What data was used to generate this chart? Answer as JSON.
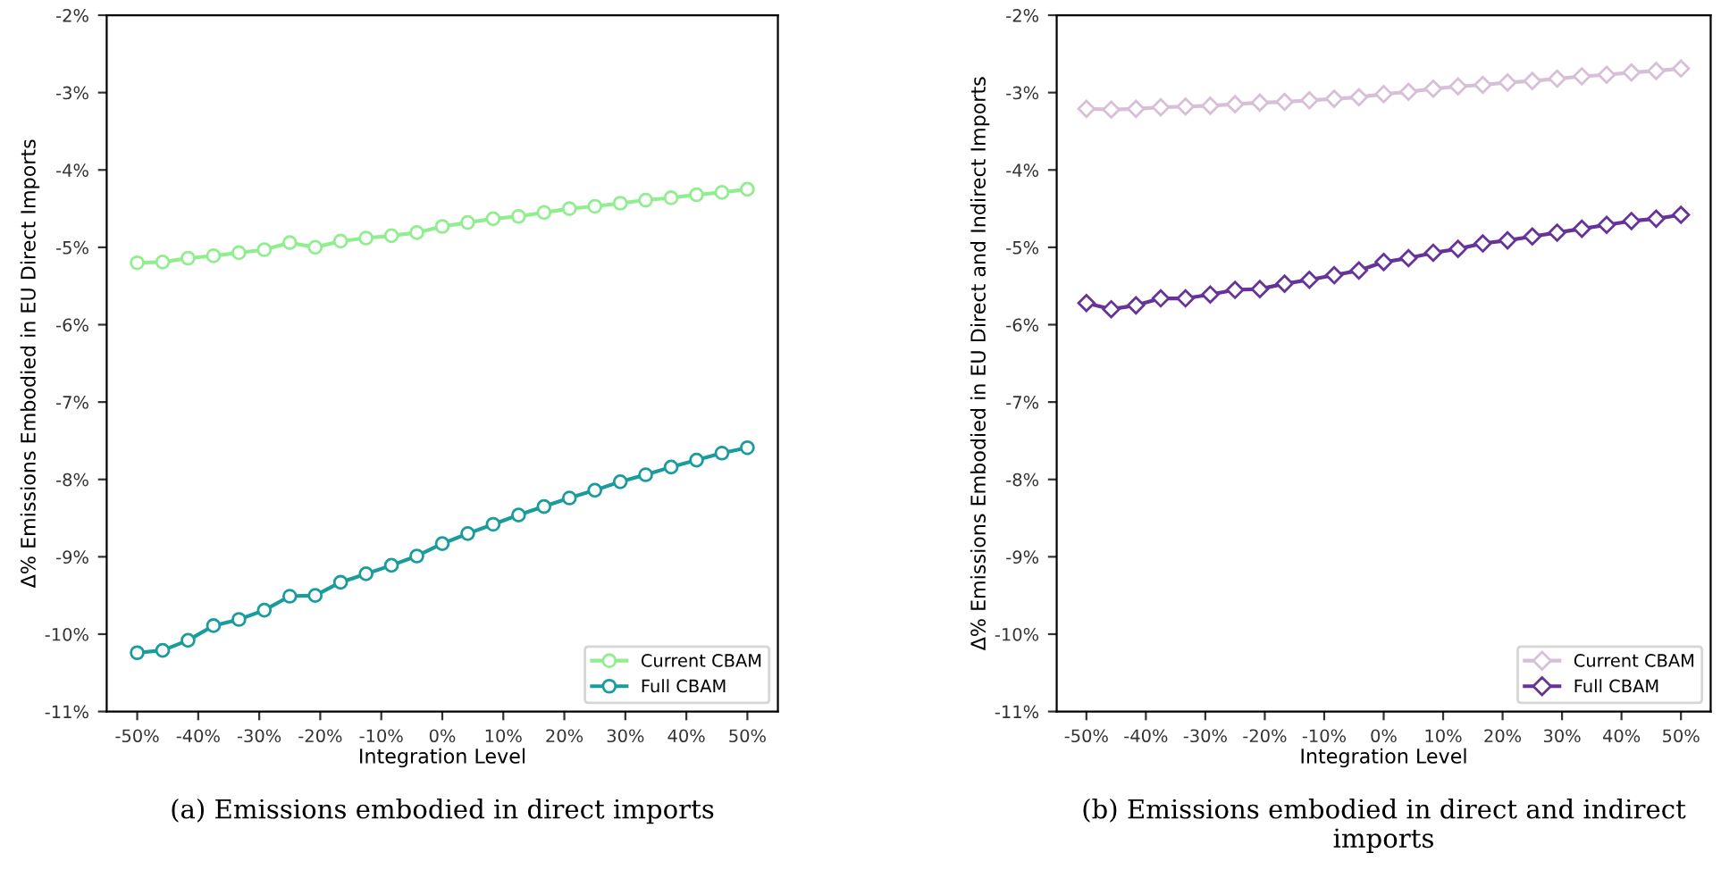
{
  "chart_data": [
    {
      "type": "line",
      "xlabel": "Integration Level",
      "ylabel": "Δ% Emissions Embodied in EU Direct Imports",
      "annotations": [
        "(a) Emissions embodied in direct imports"
      ],
      "marker": "circle",
      "legend": "bottom right",
      "grid": false,
      "x": [
        -50,
        -45.83,
        -41.67,
        -37.5,
        -33.33,
        -29.17,
        -25,
        -20.83,
        -16.67,
        -12.5,
        -8.33,
        -4.17,
        0,
        4.17,
        8.33,
        12.5,
        16.67,
        20.83,
        25,
        29.17,
        33.33,
        37.5,
        41.67,
        45.83,
        50
      ],
      "xlim": [
        -55,
        55
      ],
      "ylim": [
        -11,
        -2
      ],
      "xticks": [
        {
          "value": -50,
          "label": "-50%"
        },
        {
          "value": -40,
          "label": "-40%"
        },
        {
          "value": -30,
          "label": "-30%"
        },
        {
          "value": -20,
          "label": "-20%"
        },
        {
          "value": -10,
          "label": "-10%"
        },
        {
          "value": 0,
          "label": "0%"
        },
        {
          "value": 10,
          "label": "10%"
        },
        {
          "value": 20,
          "label": "20%"
        },
        {
          "value": 30,
          "label": "30%"
        },
        {
          "value": 40,
          "label": "40%"
        },
        {
          "value": 50,
          "label": "50%"
        }
      ],
      "yticks": [
        {
          "value": -11,
          "label": "-11%"
        },
        {
          "value": -10,
          "label": "-10%"
        },
        {
          "value": -9,
          "label": "-9%"
        },
        {
          "value": -8,
          "label": "-8%"
        },
        {
          "value": -7,
          "label": "-7%"
        },
        {
          "value": -6,
          "label": "-6%"
        },
        {
          "value": -5,
          "label": "-5%"
        },
        {
          "value": -4,
          "label": "-4%"
        },
        {
          "value": -3,
          "label": "-3%"
        },
        {
          "value": -2,
          "label": "-2%"
        }
      ],
      "series": [
        {
          "name": "Current CBAM",
          "color": "#90ee90",
          "values": [
            -5.2,
            -5.19,
            -5.14,
            -5.11,
            -5.07,
            -5.03,
            -4.94,
            -5.0,
            -4.92,
            -4.88,
            -4.85,
            -4.81,
            -4.73,
            -4.68,
            -4.63,
            -4.6,
            -4.55,
            -4.5,
            -4.47,
            -4.43,
            -4.39,
            -4.36,
            -4.32,
            -4.29,
            -4.25
          ]
        },
        {
          "name": "Full CBAM",
          "color": "#1a9c9c",
          "values": [
            -10.24,
            -10.21,
            -10.08,
            -9.89,
            -9.81,
            -9.69,
            -9.51,
            -9.5,
            -9.33,
            -9.22,
            -9.11,
            -8.99,
            -8.83,
            -8.7,
            -8.58,
            -8.46,
            -8.35,
            -8.24,
            -8.14,
            -8.03,
            -7.94,
            -7.84,
            -7.75,
            -7.66,
            -7.59
          ]
        }
      ]
    },
    {
      "type": "line",
      "xlabel": "Integration Level",
      "ylabel": "Δ% Emissions Embodied in EU Direct and Indirect Imports",
      "annotations": [
        "(b) Emissions embodied in direct and indirect imports"
      ],
      "marker": "diamond",
      "legend": "bottom right",
      "grid": false,
      "x": [
        -50,
        -45.83,
        -41.67,
        -37.5,
        -33.33,
        -29.17,
        -25,
        -20.83,
        -16.67,
        -12.5,
        -8.33,
        -4.17,
        0,
        4.17,
        8.33,
        12.5,
        16.67,
        20.83,
        25,
        29.17,
        33.33,
        37.5,
        41.67,
        45.83,
        50
      ],
      "xlim": [
        -55,
        55
      ],
      "ylim": [
        -11,
        -2
      ],
      "xticks": [
        {
          "value": -50,
          "label": "-50%"
        },
        {
          "value": -40,
          "label": "-40%"
        },
        {
          "value": -30,
          "label": "-30%"
        },
        {
          "value": -20,
          "label": "-20%"
        },
        {
          "value": -10,
          "label": "-10%"
        },
        {
          "value": 0,
          "label": "0%"
        },
        {
          "value": 10,
          "label": "10%"
        },
        {
          "value": 20,
          "label": "20%"
        },
        {
          "value": 30,
          "label": "30%"
        },
        {
          "value": 40,
          "label": "40%"
        },
        {
          "value": 50,
          "label": "50%"
        }
      ],
      "yticks": [
        {
          "value": -11,
          "label": "-11%"
        },
        {
          "value": -10,
          "label": "-10%"
        },
        {
          "value": -9,
          "label": "-9%"
        },
        {
          "value": -8,
          "label": "-8%"
        },
        {
          "value": -7,
          "label": "-7%"
        },
        {
          "value": -6,
          "label": "-6%"
        },
        {
          "value": -5,
          "label": "-5%"
        },
        {
          "value": -4,
          "label": "-4%"
        },
        {
          "value": -3,
          "label": "-3%"
        },
        {
          "value": -2,
          "label": "-2%"
        }
      ],
      "series": [
        {
          "name": "Current CBAM",
          "color": "#d8bfd8",
          "values": [
            -3.21,
            -3.22,
            -3.21,
            -3.19,
            -3.18,
            -3.17,
            -3.15,
            -3.13,
            -3.12,
            -3.1,
            -3.08,
            -3.06,
            -3.02,
            -2.99,
            -2.95,
            -2.92,
            -2.9,
            -2.87,
            -2.85,
            -2.82,
            -2.79,
            -2.77,
            -2.74,
            -2.72,
            -2.69
          ]
        },
        {
          "name": "Full CBAM",
          "color": "#663399",
          "values": [
            -5.72,
            -5.8,
            -5.75,
            -5.66,
            -5.66,
            -5.61,
            -5.55,
            -5.54,
            -5.47,
            -5.42,
            -5.36,
            -5.3,
            -5.19,
            -5.14,
            -5.07,
            -5.02,
            -4.95,
            -4.91,
            -4.86,
            -4.81,
            -4.76,
            -4.71,
            -4.66,
            -4.63,
            -4.58
          ]
        }
      ]
    }
  ]
}
